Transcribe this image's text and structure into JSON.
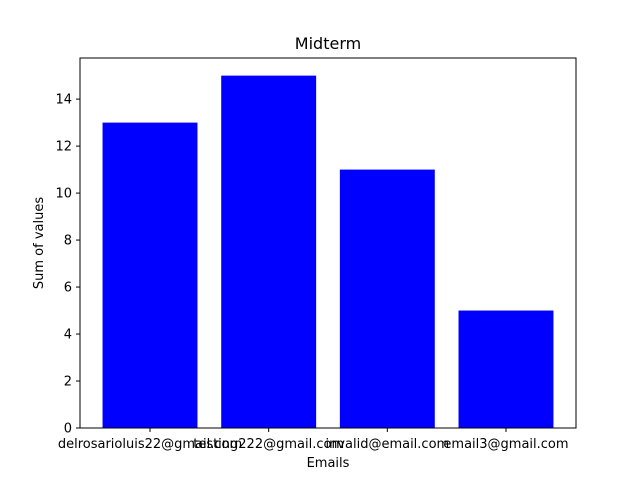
{
  "chart_data": {
    "type": "bar",
    "title": "Midterm",
    "xlabel": "Emails",
    "ylabel": "Sum of values",
    "categories": [
      "delrosarioluis22@gmail.com",
      "testing222@gmail.com",
      "invalid@email.com",
      "email3@gmail.com"
    ],
    "values": [
      13,
      15,
      11,
      5
    ],
    "ylim": [
      0,
      15.75
    ],
    "yticks": [
      0,
      2,
      4,
      6,
      8,
      10,
      12,
      14
    ],
    "bar_color": "#0000ff",
    "grid": false,
    "legend": "none"
  }
}
